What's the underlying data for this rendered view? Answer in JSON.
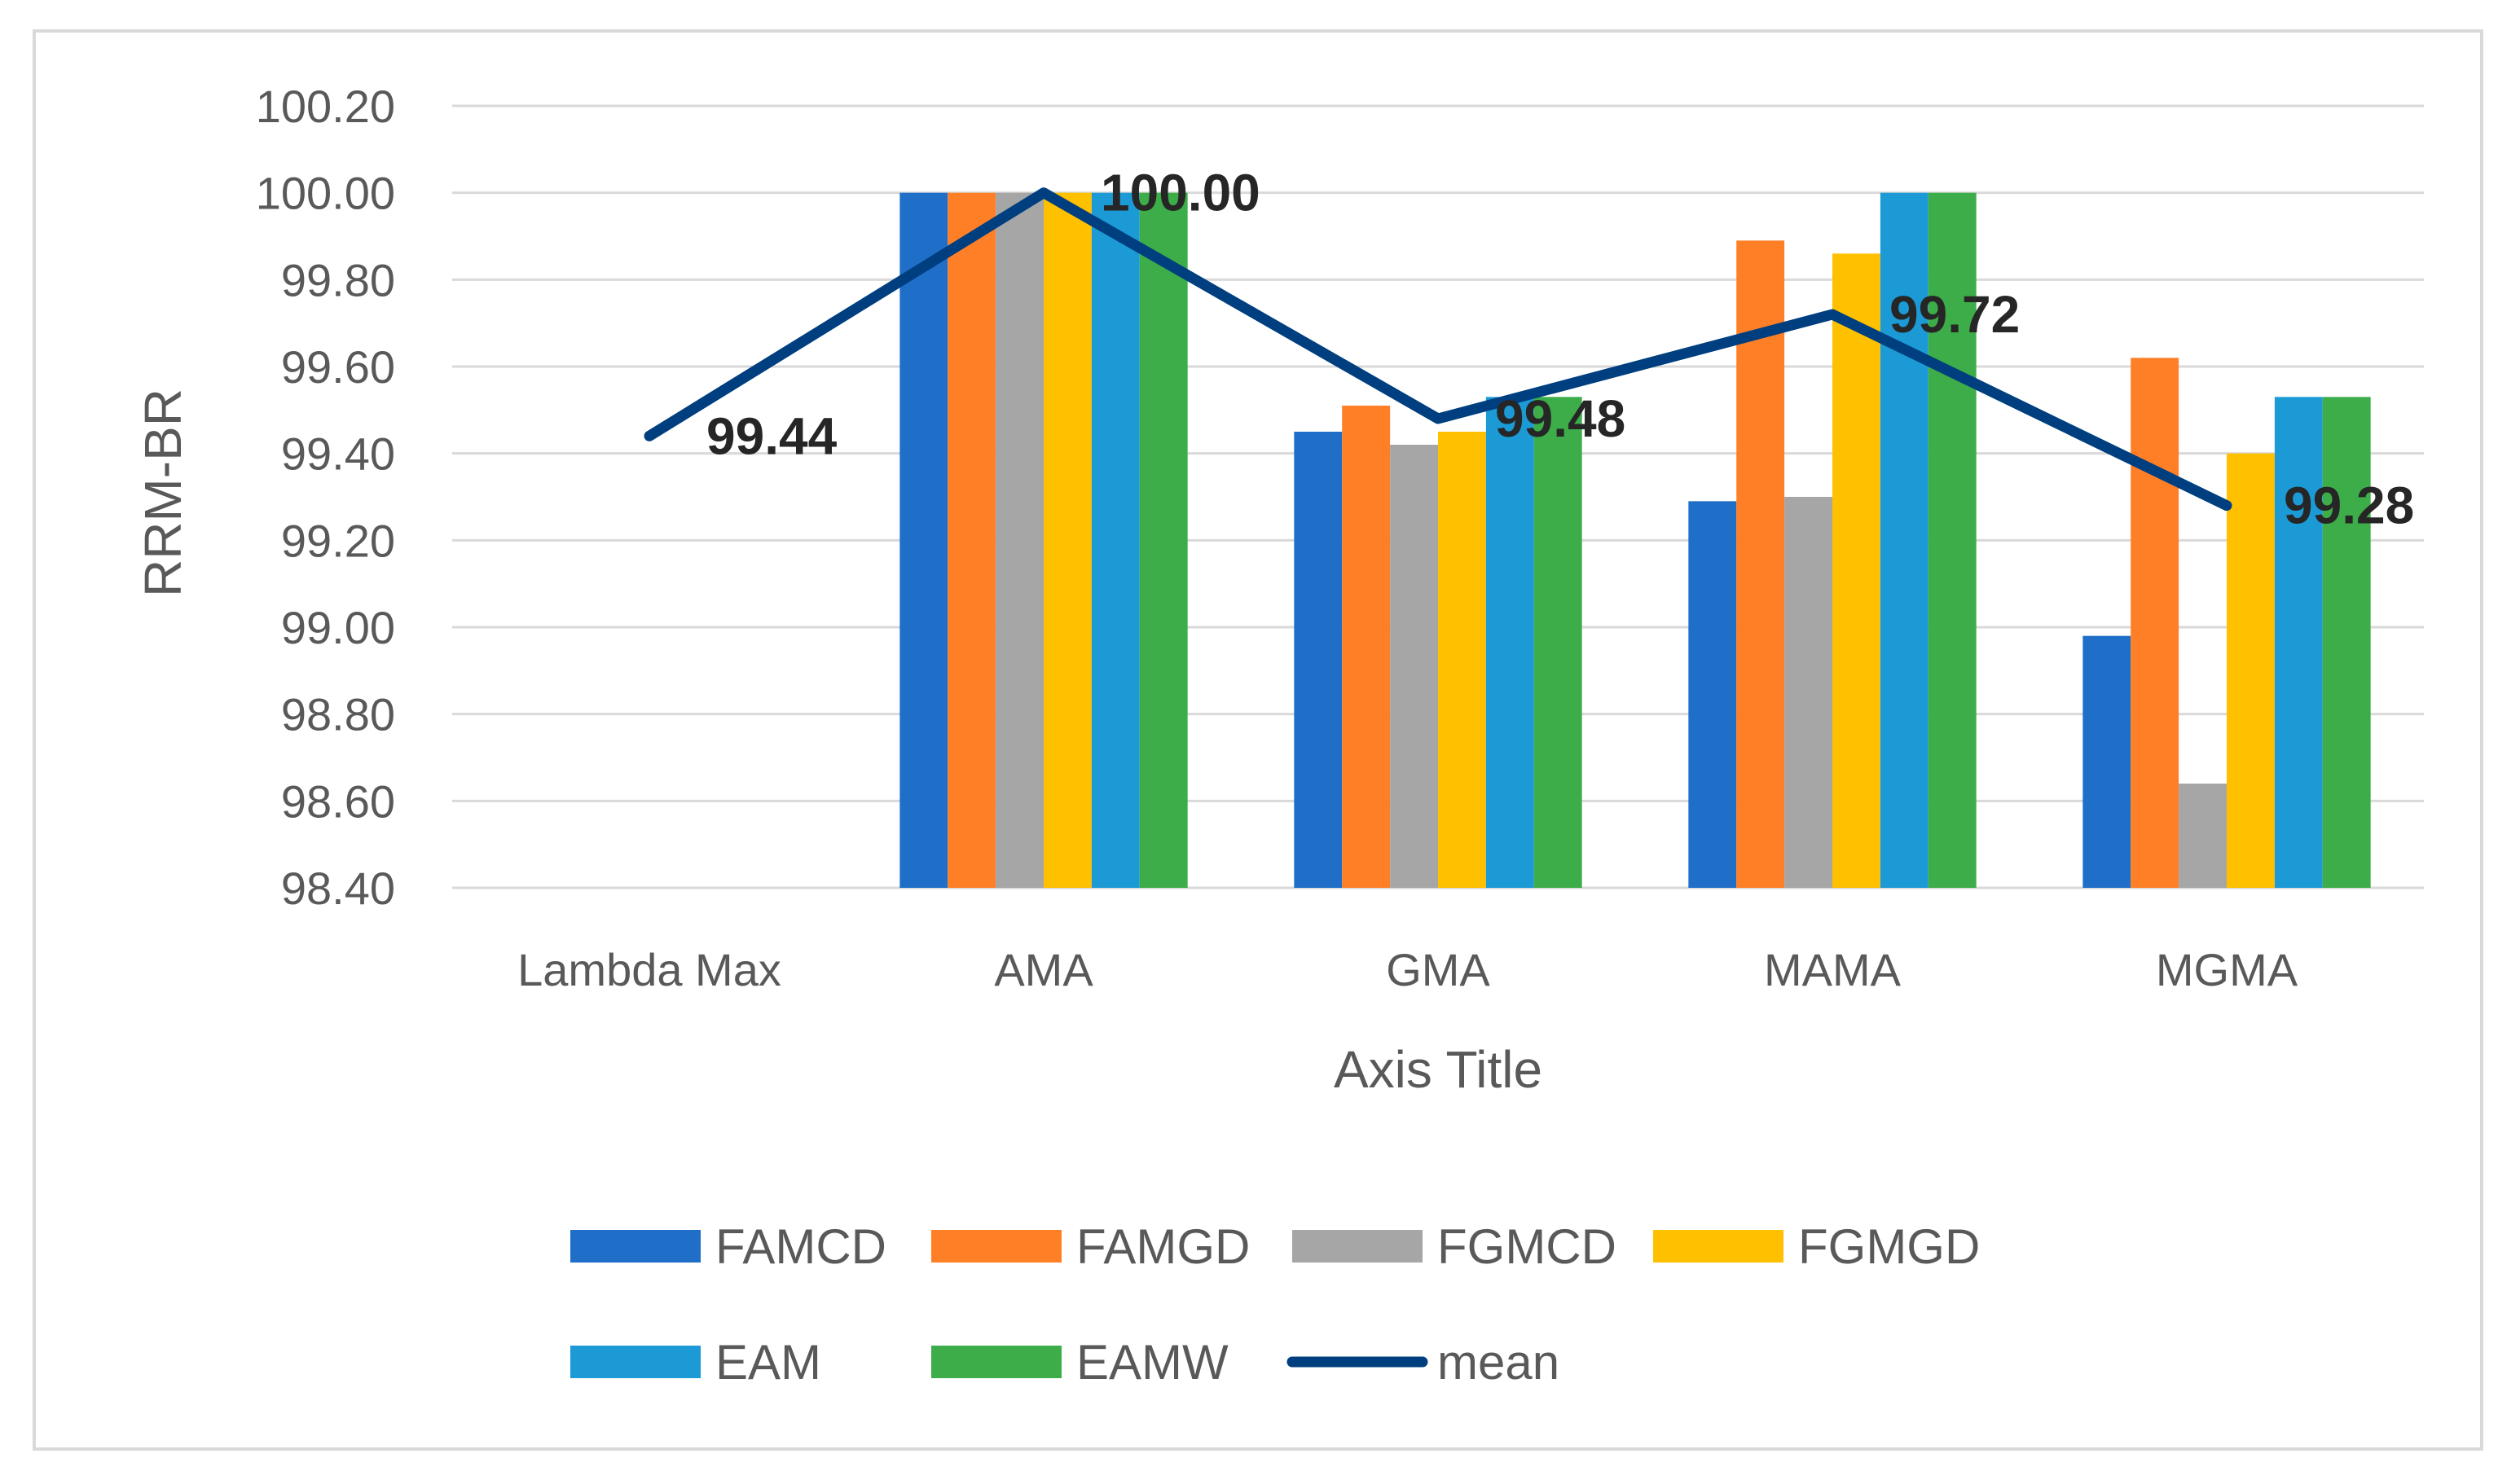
{
  "chart_data": {
    "type": "bar",
    "title": "",
    "xlabel": "Axis Title",
    "ylabel": "RRM-BR",
    "ylim": [
      98.4,
      100.2
    ],
    "ytick_step": 0.2,
    "yticks": [
      "98.40",
      "98.60",
      "98.80",
      "99.00",
      "99.20",
      "99.40",
      "99.60",
      "99.80",
      "100.00",
      "100.20"
    ],
    "categories": [
      "Lambda Max",
      "AMA",
      "GMA",
      "MAMA",
      "MGMA"
    ],
    "grid": true,
    "legend_position": "bottom",
    "series": [
      {
        "name": "FAMCD",
        "type": "bar",
        "color": "#1f6fc9",
        "values": [
          null,
          100.0,
          99.45,
          99.29,
          98.98
        ]
      },
      {
        "name": "FAMGD",
        "type": "bar",
        "color": "#ff7f27",
        "values": [
          null,
          100.0,
          99.51,
          99.89,
          99.62
        ]
      },
      {
        "name": "FGMCD",
        "type": "bar",
        "color": "#a6a6a6",
        "values": [
          null,
          100.0,
          99.42,
          99.3,
          98.64
        ]
      },
      {
        "name": "FGMGD",
        "type": "bar",
        "color": "#ffc000",
        "values": [
          null,
          100.0,
          99.45,
          99.86,
          99.4
        ]
      },
      {
        "name": "EAM",
        "type": "bar",
        "color": "#1b9ad6",
        "values": [
          null,
          100.0,
          99.53,
          100.0,
          99.53
        ]
      },
      {
        "name": "EAMW",
        "type": "bar",
        "color": "#3cad48",
        "values": [
          null,
          100.0,
          99.53,
          100.0,
          99.53
        ]
      },
      {
        "name": "mean",
        "type": "line",
        "color": "#003f7f",
        "values": [
          99.44,
          100.0,
          99.48,
          99.72,
          99.28
        ]
      }
    ],
    "data_labels": [
      "99.44",
      "100.00",
      "99.48",
      "99.72",
      "99.28"
    ]
  }
}
